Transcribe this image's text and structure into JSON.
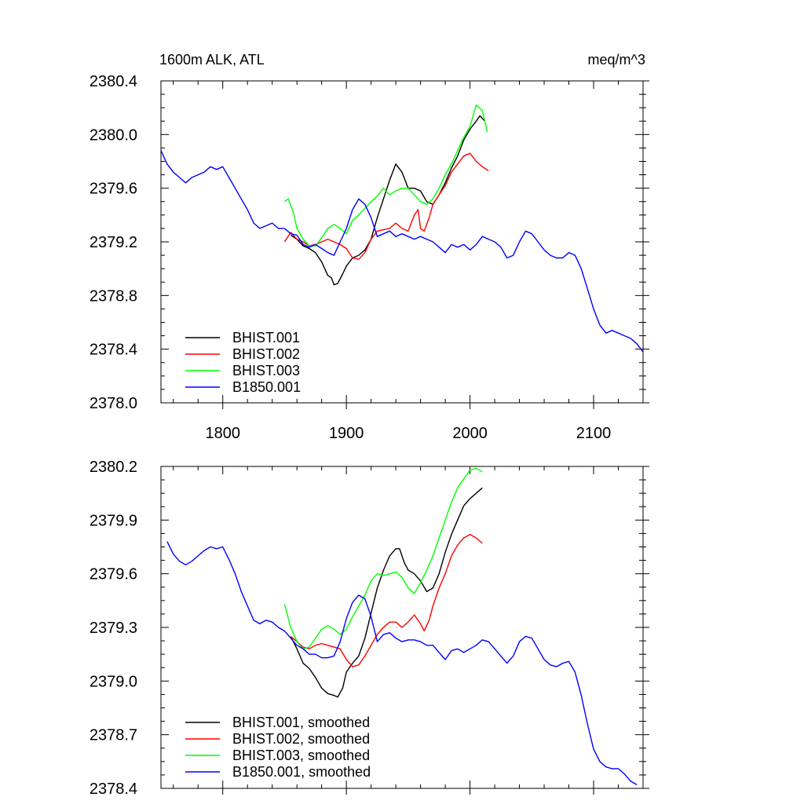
{
  "chart_data": [
    {
      "type": "line",
      "title": "1600m ALK, ATL",
      "units": "meq/m^3",
      "xlim": [
        1750,
        2140
      ],
      "ylim": [
        2378.0,
        2380.4
      ],
      "x_ticks": [
        1800,
        1900,
        2000,
        2100
      ],
      "x_tick_labels": [
        "1800",
        "1900",
        "2000",
        "2100"
      ],
      "y_ticks": [
        2378.0,
        2378.4,
        2378.8,
        2379.2,
        2379.6,
        2380.0,
        2380.4
      ],
      "y_tick_labels": [
        "2378.0",
        "2378.4",
        "2378.8",
        "2379.2",
        "2379.6",
        "2380.0",
        "2380.4"
      ],
      "legend_position": "bottom-left",
      "series": [
        {
          "name": "BHIST.001",
          "color": "#000000",
          "x": [
            1855,
            1860,
            1865,
            1870,
            1875,
            1880,
            1885,
            1888,
            1890,
            1893,
            1897,
            1900,
            1905,
            1910,
            1915,
            1920,
            1925,
            1930,
            1935,
            1940,
            1945,
            1950,
            1955,
            1960,
            1965,
            1970,
            1975,
            1980,
            1985,
            1990,
            1995,
            2000,
            2005,
            2008,
            2012
          ],
          "y": [
            2379.25,
            2379.22,
            2379.17,
            2379.15,
            2379.12,
            2379.05,
            2378.95,
            2378.93,
            2378.88,
            2378.89,
            2378.96,
            2379.02,
            2379.08,
            2379.1,
            2379.14,
            2379.22,
            2379.38,
            2379.52,
            2379.66,
            2379.78,
            2379.72,
            2379.6,
            2379.6,
            2379.58,
            2379.5,
            2379.48,
            2379.55,
            2379.64,
            2379.75,
            2379.84,
            2379.96,
            2380.04,
            2380.1,
            2380.14,
            2380.1
          ]
        },
        {
          "name": "BHIST.002",
          "color": "#ff0000",
          "x": [
            1850,
            1855,
            1860,
            1865,
            1870,
            1875,
            1880,
            1885,
            1890,
            1895,
            1900,
            1905,
            1910,
            1915,
            1920,
            1925,
            1930,
            1935,
            1940,
            1945,
            1950,
            1955,
            1958,
            1960,
            1963,
            1967,
            1970,
            1975,
            1980,
            1985,
            1990,
            1995,
            2000,
            2005,
            2010,
            2015
          ],
          "y": [
            2379.2,
            2379.27,
            2379.22,
            2379.2,
            2379.17,
            2379.18,
            2379.2,
            2379.22,
            2379.2,
            2379.18,
            2379.15,
            2379.08,
            2379.07,
            2379.12,
            2379.22,
            2379.28,
            2379.29,
            2379.3,
            2379.34,
            2379.3,
            2379.28,
            2379.4,
            2379.44,
            2379.3,
            2379.28,
            2379.38,
            2379.48,
            2379.55,
            2379.62,
            2379.72,
            2379.78,
            2379.84,
            2379.86,
            2379.8,
            2379.76,
            2379.73
          ]
        },
        {
          "name": "BHIST.003",
          "color": "#00ff00",
          "x": [
            1850,
            1853,
            1857,
            1860,
            1865,
            1870,
            1875,
            1880,
            1885,
            1890,
            1895,
            1900,
            1905,
            1910,
            1915,
            1920,
            1925,
            1930,
            1935,
            1940,
            1945,
            1950,
            1955,
            1960,
            1965,
            1970,
            1975,
            1980,
            1985,
            1990,
            1995,
            2000,
            2005,
            2010,
            2014
          ],
          "y": [
            2379.5,
            2379.52,
            2379.42,
            2379.3,
            2379.22,
            2379.17,
            2379.17,
            2379.23,
            2379.3,
            2379.33,
            2379.3,
            2379.26,
            2379.36,
            2379.4,
            2379.45,
            2379.5,
            2379.54,
            2379.6,
            2379.55,
            2379.58,
            2379.6,
            2379.6,
            2379.55,
            2379.5,
            2379.48,
            2379.52,
            2379.6,
            2379.7,
            2379.78,
            2379.88,
            2379.98,
            2380.06,
            2380.22,
            2380.18,
            2380.02
          ]
        },
        {
          "name": "B1850.001",
          "color": "#0000ff",
          "x": [
            1750,
            1755,
            1760,
            1765,
            1770,
            1775,
            1780,
            1785,
            1790,
            1795,
            1800,
            1805,
            1810,
            1815,
            1820,
            1825,
            1830,
            1835,
            1840,
            1845,
            1850,
            1855,
            1860,
            1865,
            1870,
            1875,
            1880,
            1885,
            1890,
            1895,
            1900,
            1905,
            1910,
            1915,
            1920,
            1925,
            1930,
            1935,
            1940,
            1945,
            1950,
            1955,
            1960,
            1965,
            1970,
            1975,
            1980,
            1985,
            1990,
            1995,
            2000,
            2005,
            2010,
            2015,
            2020,
            2025,
            2030,
            2035,
            2040,
            2045,
            2050,
            2055,
            2060,
            2065,
            2070,
            2075,
            2080,
            2085,
            2090,
            2095,
            2100,
            2105,
            2110,
            2115,
            2120,
            2125,
            2130,
            2135,
            2140
          ],
          "y": [
            2379.88,
            2379.78,
            2379.72,
            2379.68,
            2379.64,
            2379.68,
            2379.7,
            2379.72,
            2379.76,
            2379.74,
            2379.76,
            2379.68,
            2379.6,
            2379.52,
            2379.44,
            2379.34,
            2379.3,
            2379.32,
            2379.34,
            2379.3,
            2379.3,
            2379.26,
            2379.25,
            2379.18,
            2379.16,
            2379.18,
            2379.15,
            2379.12,
            2379.1,
            2379.2,
            2379.3,
            2379.44,
            2379.52,
            2379.48,
            2379.38,
            2379.24,
            2379.26,
            2379.28,
            2379.24,
            2379.26,
            2379.24,
            2379.22,
            2379.24,
            2379.22,
            2379.2,
            2379.16,
            2379.12,
            2379.18,
            2379.16,
            2379.18,
            2379.14,
            2379.18,
            2379.24,
            2379.22,
            2379.2,
            2379.16,
            2379.08,
            2379.1,
            2379.2,
            2379.28,
            2379.26,
            2379.2,
            2379.14,
            2379.1,
            2379.08,
            2379.08,
            2379.12,
            2379.1,
            2379.0,
            2378.85,
            2378.7,
            2378.58,
            2378.52,
            2378.54,
            2378.52,
            2378.5,
            2378.48,
            2378.44,
            2378.38
          ]
        }
      ]
    },
    {
      "type": "line",
      "xlim": [
        1750,
        2140
      ],
      "ylim": [
        2378.4,
        2380.2
      ],
      "x_ticks": [
        1800,
        1900,
        2000,
        2100
      ],
      "y_ticks": [
        2378.4,
        2378.7,
        2379.0,
        2379.3,
        2379.6,
        2379.9,
        2380.2
      ],
      "y_tick_labels": [
        "2378.4",
        "2378.7",
        "2379.0",
        "2379.3",
        "2379.6",
        "2379.9",
        "2380.2"
      ],
      "legend_position": "bottom-left",
      "series": [
        {
          "name": "BHIST.001, smoothed",
          "color": "#000000",
          "x": [
            1855,
            1860,
            1865,
            1870,
            1875,
            1880,
            1885,
            1890,
            1893,
            1897,
            1900,
            1905,
            1910,
            1915,
            1920,
            1925,
            1930,
            1935,
            1940,
            1943,
            1947,
            1950,
            1955,
            1960,
            1965,
            1970,
            1975,
            1980,
            1985,
            1990,
            1995,
            2000,
            2005,
            2010
          ],
          "y": [
            2379.25,
            2379.18,
            2379.1,
            2379.07,
            2379.02,
            2378.96,
            2378.93,
            2378.92,
            2378.91,
            2378.96,
            2379.05,
            2379.1,
            2379.14,
            2379.24,
            2379.38,
            2379.52,
            2379.62,
            2379.7,
            2379.74,
            2379.74,
            2379.66,
            2379.62,
            2379.6,
            2379.56,
            2379.5,
            2379.52,
            2379.6,
            2379.72,
            2379.82,
            2379.9,
            2379.98,
            2380.02,
            2380.05,
            2380.08
          ]
        },
        {
          "name": "BHIST.002, smoothed",
          "color": "#ff0000",
          "x": [
            1855,
            1860,
            1865,
            1870,
            1875,
            1880,
            1885,
            1890,
            1895,
            1900,
            1905,
            1910,
            1915,
            1920,
            1925,
            1930,
            1935,
            1940,
            1945,
            1950,
            1955,
            1960,
            1963,
            1967,
            1970,
            1975,
            1980,
            1985,
            1990,
            1995,
            2000,
            2005,
            2010
          ],
          "y": [
            2379.25,
            2379.22,
            2379.19,
            2379.18,
            2379.2,
            2379.21,
            2379.2,
            2379.19,
            2379.18,
            2379.12,
            2379.08,
            2379.09,
            2379.14,
            2379.2,
            2379.26,
            2379.3,
            2379.33,
            2379.33,
            2379.3,
            2379.33,
            2379.37,
            2379.32,
            2379.28,
            2379.34,
            2379.42,
            2379.52,
            2379.6,
            2379.7,
            2379.76,
            2379.8,
            2379.82,
            2379.8,
            2379.77
          ]
        },
        {
          "name": "BHIST.003, smoothed",
          "color": "#00ff00",
          "x": [
            1850,
            1855,
            1860,
            1865,
            1870,
            1875,
            1880,
            1885,
            1890,
            1895,
            1900,
            1905,
            1910,
            1915,
            1920,
            1925,
            1930,
            1935,
            1940,
            1945,
            1950,
            1955,
            1960,
            1965,
            1970,
            1975,
            1980,
            1985,
            1990,
            1995,
            2000,
            2005,
            2010
          ],
          "y": [
            2379.43,
            2379.3,
            2379.22,
            2379.18,
            2379.19,
            2379.24,
            2379.29,
            2379.31,
            2379.29,
            2379.26,
            2379.29,
            2379.36,
            2379.42,
            2379.48,
            2379.56,
            2379.6,
            2379.59,
            2379.6,
            2379.61,
            2379.58,
            2379.52,
            2379.49,
            2379.55,
            2379.62,
            2379.7,
            2379.8,
            2379.9,
            2380.0,
            2380.08,
            2380.13,
            2380.18,
            2380.19,
            2380.17
          ]
        },
        {
          "name": "B1850.001, smoothed",
          "color": "#0000ff",
          "x": [
            1755,
            1760,
            1765,
            1770,
            1775,
            1780,
            1785,
            1790,
            1795,
            1800,
            1805,
            1810,
            1815,
            1820,
            1825,
            1830,
            1835,
            1840,
            1845,
            1850,
            1855,
            1860,
            1865,
            1870,
            1875,
            1880,
            1885,
            1890,
            1895,
            1900,
            1905,
            1910,
            1915,
            1920,
            1925,
            1930,
            1935,
            1940,
            1945,
            1950,
            1955,
            1960,
            1965,
            1970,
            1975,
            1980,
            1985,
            1990,
            1995,
            2000,
            2005,
            2010,
            2015,
            2020,
            2025,
            2030,
            2035,
            2040,
            2045,
            2050,
            2055,
            2060,
            2065,
            2070,
            2075,
            2080,
            2085,
            2090,
            2095,
            2100,
            2105,
            2110,
            2115,
            2120,
            2125,
            2130,
            2135
          ],
          "y": [
            2379.78,
            2379.71,
            2379.67,
            2379.65,
            2379.67,
            2379.7,
            2379.73,
            2379.75,
            2379.74,
            2379.75,
            2379.68,
            2379.6,
            2379.5,
            2379.42,
            2379.34,
            2379.32,
            2379.34,
            2379.33,
            2379.3,
            2379.28,
            2379.24,
            2379.2,
            2379.18,
            2379.15,
            2379.15,
            2379.13,
            2379.13,
            2379.14,
            2379.22,
            2379.35,
            2379.44,
            2379.48,
            2379.46,
            2379.36,
            2379.22,
            2379.26,
            2379.27,
            2379.24,
            2379.22,
            2379.23,
            2379.23,
            2379.22,
            2379.2,
            2379.2,
            2379.16,
            2379.12,
            2379.17,
            2379.18,
            2379.16,
            2379.18,
            2379.2,
            2379.23,
            2379.22,
            2379.18,
            2379.14,
            2379.1,
            2379.14,
            2379.22,
            2379.25,
            2379.24,
            2379.18,
            2379.12,
            2379.09,
            2379.08,
            2379.1,
            2379.11,
            2379.05,
            2378.92,
            2378.76,
            2378.62,
            2378.55,
            2378.52,
            2378.51,
            2378.51,
            2378.48,
            2378.44,
            2378.42
          ]
        }
      ]
    }
  ]
}
